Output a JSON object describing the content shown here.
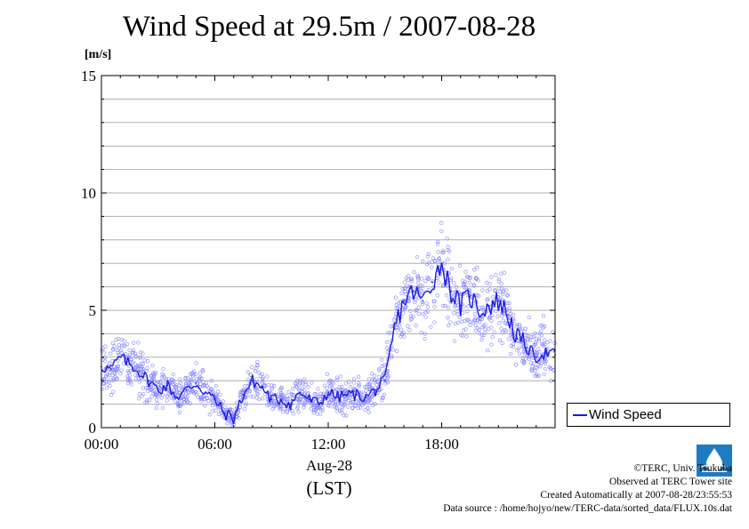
{
  "title": "Wind Speed at 29.5m / 2007-08-28",
  "colors": {
    "series": "#1a1adb",
    "scatter": "#8080ff",
    "grid": "#b0b0b0",
    "axis": "#000000"
  },
  "legend": {
    "label": "Wind Speed",
    "icon": "line-marker"
  },
  "x_axis": {
    "date_label": "Aug-28",
    "zone_label": "(LST)"
  },
  "credits": {
    "line1": "©TERC, Univ. Tsukuba",
    "line2": "Observed at TERC Tower site",
    "line3": "Created Automatically at 2007-08-28/23:55:53",
    "line4": "Data source : /home/hojyo/new/TERC-data/sorted_data/FLUX.10s.dat"
  },
  "logo": {
    "icon": "terc-logo"
  },
  "chart_data": {
    "type": "line",
    "title": "Wind Speed at 29.5m / 2007-08-28",
    "ylabel": "[m/s]",
    "xlabel": "Aug-28 (LST)",
    "ylim": [
      0,
      15
    ],
    "xlim_hours": [
      0,
      24
    ],
    "yticks": [
      "0",
      "5",
      "10",
      "15"
    ],
    "xticks": [
      "00:00",
      "06:00",
      "12:00",
      "18:00"
    ],
    "xtick_hours": [
      0,
      6,
      12,
      18
    ],
    "grid": "horizontal every 1 m/s",
    "legend_position": "right-bottom outside",
    "series": [
      {
        "name": "Wind Speed",
        "x_hours": [
          0.0,
          0.5,
          1.0,
          1.5,
          2.0,
          2.5,
          3.0,
          3.5,
          4.0,
          4.5,
          5.0,
          5.5,
          6.0,
          6.5,
          7.0,
          7.5,
          8.0,
          8.5,
          9.0,
          9.5,
          10.0,
          10.5,
          11.0,
          11.5,
          12.0,
          12.5,
          13.0,
          13.5,
          14.0,
          14.5,
          15.0,
          15.5,
          16.0,
          16.5,
          17.0,
          17.5,
          18.0,
          18.5,
          19.0,
          19.5,
          20.0,
          20.5,
          21.0,
          21.5,
          22.0,
          22.5,
          23.0,
          23.5,
          24.0
        ],
        "values": [
          2.6,
          2.5,
          3.0,
          2.7,
          2.4,
          2.0,
          1.6,
          1.8,
          1.3,
          1.6,
          1.9,
          1.5,
          1.2,
          0.6,
          0.4,
          1.4,
          2.0,
          1.7,
          1.2,
          1.2,
          1.0,
          1.5,
          1.2,
          1.0,
          1.5,
          1.3,
          1.4,
          1.4,
          1.3,
          1.6,
          2.0,
          4.2,
          5.4,
          5.8,
          5.4,
          6.2,
          7.0,
          5.8,
          5.2,
          5.6,
          5.0,
          5.2,
          5.4,
          4.8,
          3.8,
          3.4,
          3.0,
          3.2,
          3.1
        ]
      }
    ],
    "scatter_note": "10-second samples shown as open circles around the line"
  }
}
